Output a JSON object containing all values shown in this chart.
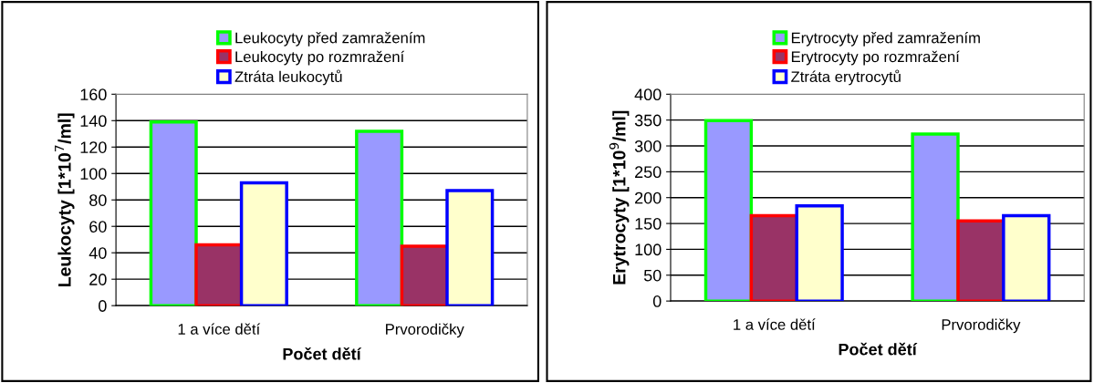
{
  "chart_data": [
    {
      "type": "bar",
      "xlabel": "Počet dětí",
      "ylabel": "Leukocyty [1*10$^{7}$/ml]",
      "categories": [
        "1 a více dětí",
        "Prvorodičky"
      ],
      "series": [
        {
          "name": "Leukocyty před zamražením",
          "color": "#9999ff",
          "values": [
            139,
            132
          ]
        },
        {
          "name": "Leukocyty po rozmražení",
          "color": "#993366",
          "values": [
            46,
            45
          ]
        },
        {
          "name": "Ztráta leukocytů",
          "color": "#ffffcc",
          "values": [
            93,
            87
          ]
        }
      ],
      "ylim": [
        0,
        160
      ],
      "yticks": [
        0,
        20,
        40,
        60,
        80,
        100,
        120,
        140,
        160
      ],
      "grid": "y",
      "legend": "top"
    },
    {
      "type": "bar",
      "xlabel": "Počet dětí",
      "ylabel": "Erytrocyty [1*10$^{9}$/ml]",
      "categories": [
        "1 a více dětí",
        "Prvorodičky"
      ],
      "series": [
        {
          "name": "Erytrocyty před zamražením",
          "color": "#9999ff",
          "values": [
            349,
            323
          ]
        },
        {
          "name": "Erytrocyty po rozmražení",
          "color": "#993366",
          "values": [
            165,
            155
          ]
        },
        {
          "name": "Ztráta erytrocytů",
          "color": "#ffffcc",
          "values": [
            184,
            165
          ]
        }
      ],
      "ylim": [
        0,
        400
      ],
      "yticks": [
        0,
        50,
        100,
        150,
        200,
        250,
        300,
        350,
        400
      ],
      "grid": "y",
      "legend": "top"
    }
  ]
}
